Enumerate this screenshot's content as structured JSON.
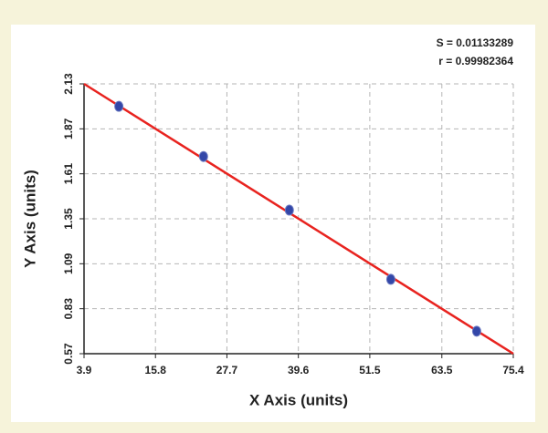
{
  "chart_data": {
    "type": "scatter",
    "x_label": "X Axis (units)",
    "y_label": "Y Axis (units)",
    "annotations": [
      "S = 0.01133289",
      "r = 0.99982364"
    ],
    "x": [
      9.7,
      23.8,
      38.1,
      55.0,
      69.3
    ],
    "values": [
      2.0,
      1.71,
      1.4,
      1.0,
      0.7
    ],
    "color": "#3347a8",
    "fit": {
      "x": [
        3.9,
        75.4
      ],
      "values": [
        2.13,
        0.57
      ],
      "color": "#e8231f"
    },
    "xlim": [
      3.9,
      75.4
    ],
    "xticks": [
      3.9,
      15.8,
      27.7,
      39.6,
      51.5,
      63.5,
      75.4
    ],
    "ylim": [
      0.57,
      2.13
    ],
    "yticks": [
      0.57,
      0.83,
      1.09,
      1.35,
      1.61,
      1.87,
      2.13
    ],
    "grid": true
  }
}
